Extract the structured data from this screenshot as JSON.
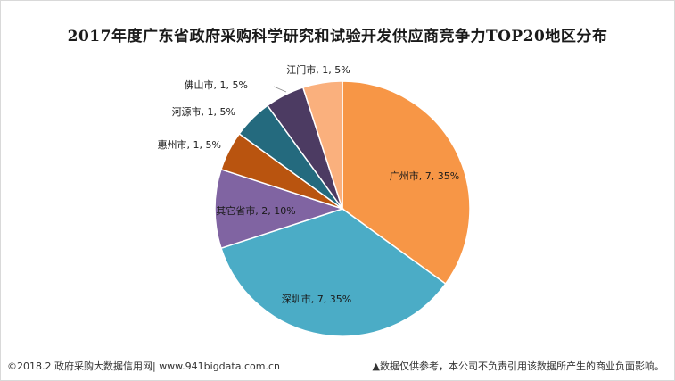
{
  "chart_data": {
    "type": "pie",
    "title": "2017年度广东省政府采购科学研究和试验开发供应商竞争力TOP20地区分布",
    "slices": [
      {
        "label": "广州市",
        "value": 7,
        "percent": "35%",
        "color": "#f79646"
      },
      {
        "label": "深圳市",
        "value": 7,
        "percent": "35%",
        "color": "#4bacc6"
      },
      {
        "label": "其它省市",
        "value": 2,
        "percent": "10%",
        "color": "#8064a2"
      },
      {
        "label": "惠州市",
        "value": 1,
        "percent": "5%",
        "color": "#b9540f"
      },
      {
        "label": "河源市",
        "value": 1,
        "percent": "5%",
        "color": "#246a7e"
      },
      {
        "label": "佛山市",
        "value": 1,
        "percent": "5%",
        "color": "#4c3b62"
      },
      {
        "label": "江门市",
        "value": 1,
        "percent": "5%",
        "color": "#fab07d"
      }
    ],
    "start_angle_deg": 0,
    "direction": "clockwise",
    "data_labels": "category, value, percent"
  },
  "footer": {
    "source": "©2018.2 政府采购大数据信用网| www.941bigdata.com.cn",
    "disclaimer": "▲数据仅供参考，本公司不负责引用该数据所产生的商业负面影响。"
  }
}
